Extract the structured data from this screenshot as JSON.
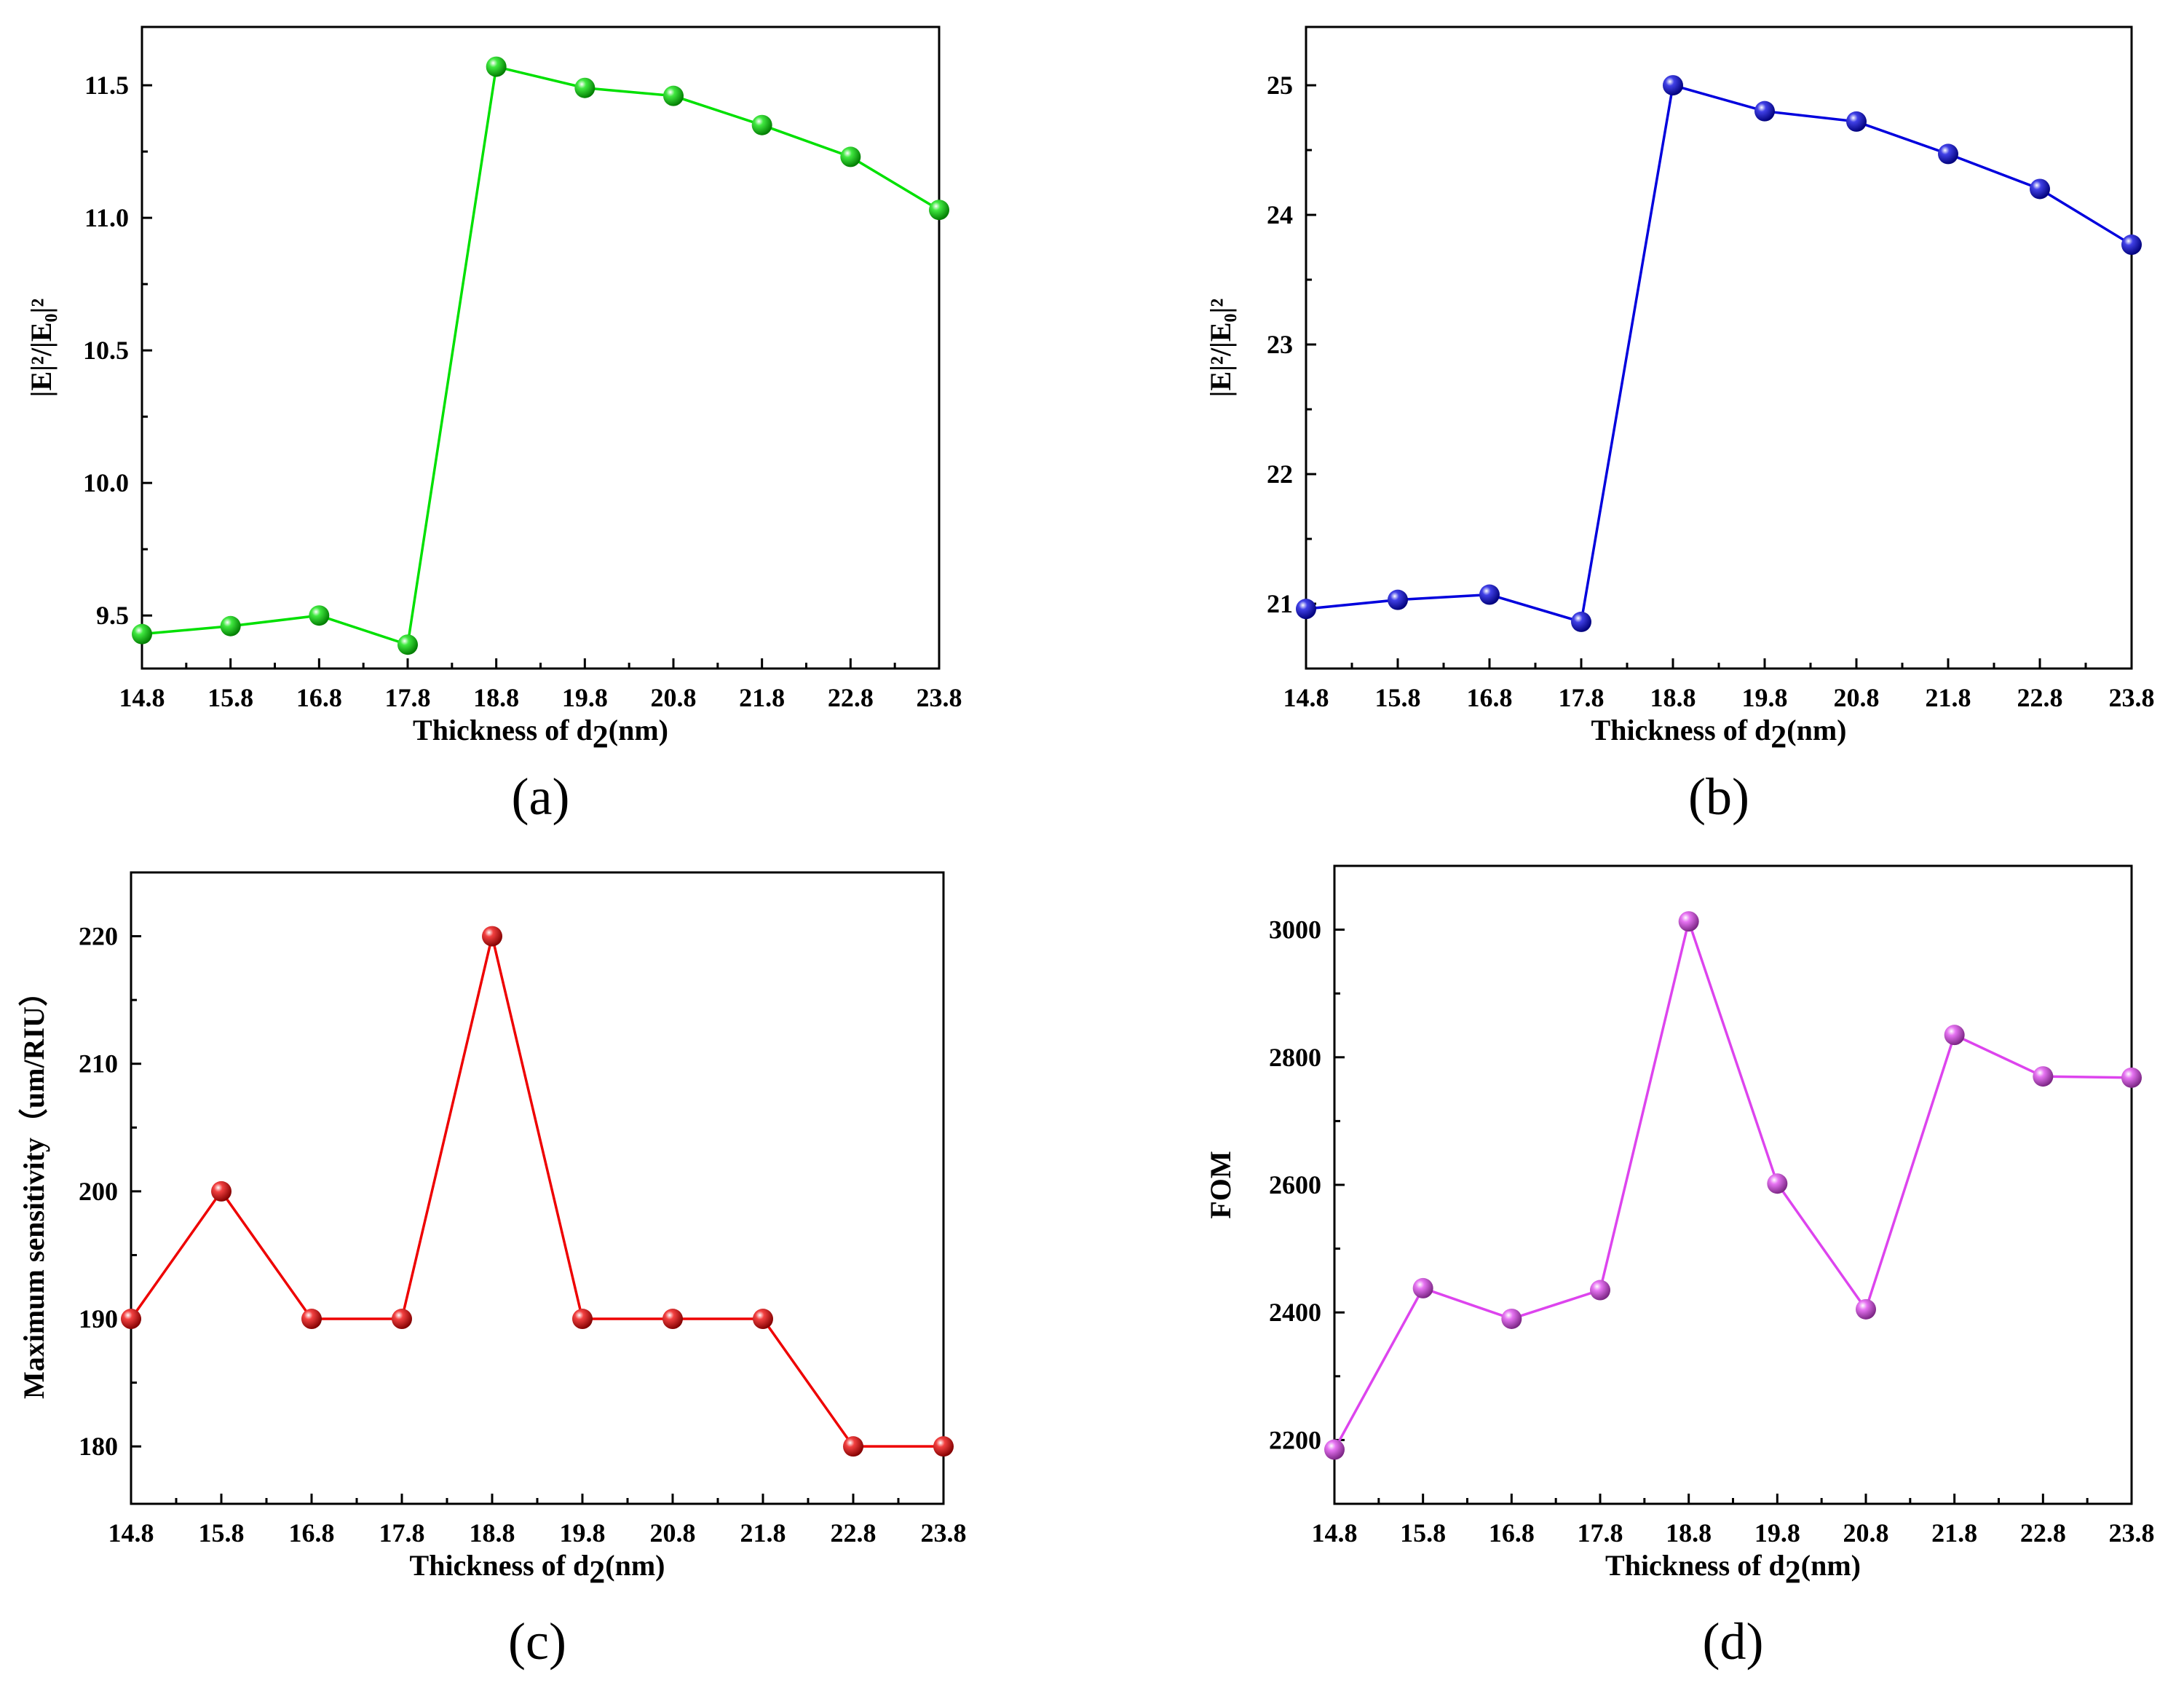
{
  "chart_data": [
    {
      "type": "line",
      "panel_label": "(a)",
      "xlabel": "Thickness of d",
      "xlabel_sub": "2",
      "xlabel_suffix": "(nm)",
      "ylabel": "|E|²/|E₀|²",
      "x": [
        14.8,
        15.8,
        16.8,
        17.8,
        18.8,
        19.8,
        20.8,
        21.8,
        22.8,
        23.8
      ],
      "x_tick_labels": [
        "14.8",
        "15.8",
        "16.8",
        "17.8",
        "18.8",
        "19.8",
        "20.8",
        "21.8",
        "22.8",
        "23.8"
      ],
      "series": [
        {
          "name": "green",
          "color": "#00e000",
          "values": [
            9.43,
            9.46,
            9.5,
            9.39,
            11.57,
            11.49,
            11.46,
            11.35,
            11.23,
            11.03
          ]
        }
      ],
      "ylim": [
        9.3,
        11.72
      ],
      "yticks": [
        9.5,
        10.0,
        10.5,
        11.0,
        11.5
      ],
      "ytick_labels": [
        "9.5",
        "10.0",
        "10.5",
        "11.0",
        "11.5"
      ]
    },
    {
      "type": "line",
      "panel_label": "(b)",
      "xlabel": "Thickness of d",
      "xlabel_sub": "2",
      "xlabel_suffix": "(nm)",
      "ylabel": "|E|²/|E₀|²",
      "x": [
        14.8,
        15.8,
        16.8,
        17.8,
        18.8,
        19.8,
        20.8,
        21.8,
        22.8,
        23.8
      ],
      "x_tick_labels": [
        "14.8",
        "15.8",
        "16.8",
        "17.8",
        "18.8",
        "19.8",
        "20.8",
        "21.8",
        "22.8",
        "23.8"
      ],
      "series": [
        {
          "name": "blue",
          "color": "#0000dd",
          "values": [
            20.96,
            21.03,
            21.07,
            20.86,
            25.0,
            24.8,
            24.72,
            24.47,
            24.2,
            23.77
          ]
        }
      ],
      "ylim": [
        20.5,
        25.45
      ],
      "yticks": [
        21,
        22,
        23,
        24,
        25
      ],
      "ytick_labels": [
        "21",
        "22",
        "23",
        "24",
        "25"
      ]
    },
    {
      "type": "line",
      "panel_label": "(c)",
      "xlabel": "Thickness of d",
      "xlabel_sub": "2",
      "xlabel_suffix": "(nm)",
      "ylabel": "Maximum sensitivity（um/RIU）",
      "x": [
        14.8,
        15.8,
        16.8,
        17.8,
        18.8,
        19.8,
        20.8,
        21.8,
        22.8,
        23.8
      ],
      "x_tick_labels": [
        "14.8",
        "15.8",
        "16.8",
        "17.8",
        "18.8",
        "19.8",
        "20.8",
        "21.8",
        "22.8",
        "23.8"
      ],
      "series": [
        {
          "name": "red",
          "color": "#ee0000",
          "values": [
            190,
            200,
            190,
            190,
            220,
            190,
            190,
            190,
            180,
            180
          ]
        }
      ],
      "ylim": [
        175.5,
        225
      ],
      "yticks": [
        180,
        190,
        200,
        210,
        220
      ],
      "ytick_labels": [
        "180",
        "190",
        "200",
        "210",
        "220"
      ]
    },
    {
      "type": "line",
      "panel_label": "(d)",
      "xlabel": "Thickness of d",
      "xlabel_sub": "2",
      "xlabel_suffix": "(nm)",
      "ylabel": "FOM",
      "x": [
        14.8,
        15.8,
        16.8,
        17.8,
        18.8,
        19.8,
        20.8,
        21.8,
        22.8,
        23.8
      ],
      "x_tick_labels": [
        "14.8",
        "15.8",
        "16.8",
        "17.8",
        "18.8",
        "19.8",
        "20.8",
        "21.8",
        "22.8",
        "23.8"
      ],
      "series": [
        {
          "name": "magenta",
          "color": "#dd44ee",
          "values": [
            2185,
            2438,
            2390,
            2435,
            3013,
            2602,
            2405,
            2835,
            2770,
            2768
          ]
        }
      ],
      "ylim": [
        2100,
        3100
      ],
      "yticks": [
        2200,
        2400,
        2600,
        2800,
        3000
      ],
      "ytick_labels": [
        "2200",
        "2400",
        "2600",
        "2800",
        "3000"
      ]
    }
  ]
}
